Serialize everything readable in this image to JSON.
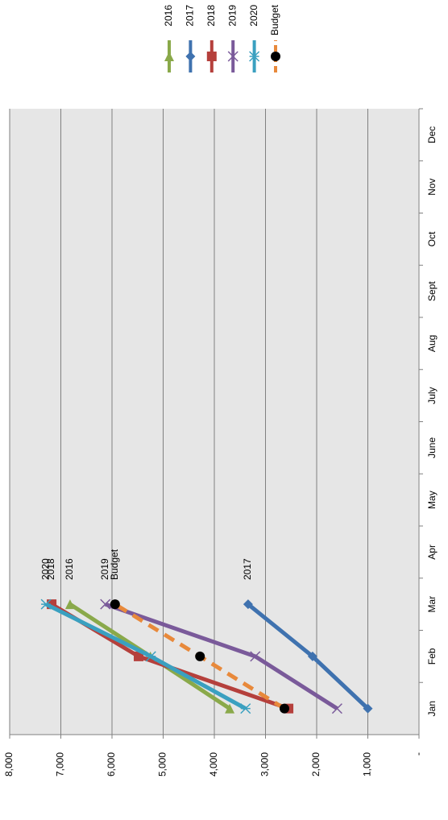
{
  "chart_data": {
    "type": "line",
    "categories": [
      "Jan",
      "Feb",
      "Mar",
      "Apr",
      "May",
      "June",
      "July",
      "Aug",
      "Sept",
      "Oct",
      "Nov",
      "Dec"
    ],
    "ylim": [
      0,
      8000
    ],
    "yticks": [
      {
        "value": 0,
        "label": "-"
      },
      {
        "value": 1000,
        "label": "1,000"
      },
      {
        "value": 2000,
        "label": "2,000"
      },
      {
        "value": 3000,
        "label": "3,000"
      },
      {
        "value": 4000,
        "label": "4,000"
      },
      {
        "value": 5000,
        "label": "5,000"
      },
      {
        "value": 6000,
        "label": "6,000"
      },
      {
        "value": 7000,
        "label": "7,000"
      },
      {
        "value": 8000,
        "label": "8,000"
      }
    ],
    "grid": true,
    "legend": "top",
    "series": [
      {
        "name": "2016",
        "color": "#8aa94a",
        "marker": "triangle",
        "values": [
          3700,
          5250,
          6820,
          null,
          null,
          null,
          null,
          null,
          null,
          null,
          null,
          null
        ]
      },
      {
        "name": "2017",
        "color": "#3f72af",
        "marker": "diamond",
        "values": [
          1000,
          2080,
          3340,
          null,
          null,
          null,
          null,
          null,
          null,
          null,
          null,
          null
        ]
      },
      {
        "name": "2018",
        "color": "#b5403c",
        "marker": "square",
        "values": [
          2550,
          5480,
          7180,
          null,
          null,
          null,
          null,
          null,
          null,
          null,
          null,
          null
        ]
      },
      {
        "name": "2019",
        "color": "#7a5a9a",
        "marker": "x",
        "values": [
          1600,
          3200,
          6130,
          null,
          null,
          null,
          null,
          null,
          null,
          null,
          null,
          null
        ]
      },
      {
        "name": "2020",
        "color": "#3aa0c0",
        "marker": "star",
        "values": [
          3390,
          5240,
          7290,
          null,
          null,
          null,
          null,
          null,
          null,
          null,
          null,
          null
        ]
      },
      {
        "name": "Budget",
        "color": "#e8893b",
        "marker": "circle",
        "dashed": true,
        "values": [
          2630,
          4280,
          5940,
          null,
          null,
          null,
          null,
          null,
          null,
          null,
          null,
          null
        ]
      }
    ]
  }
}
